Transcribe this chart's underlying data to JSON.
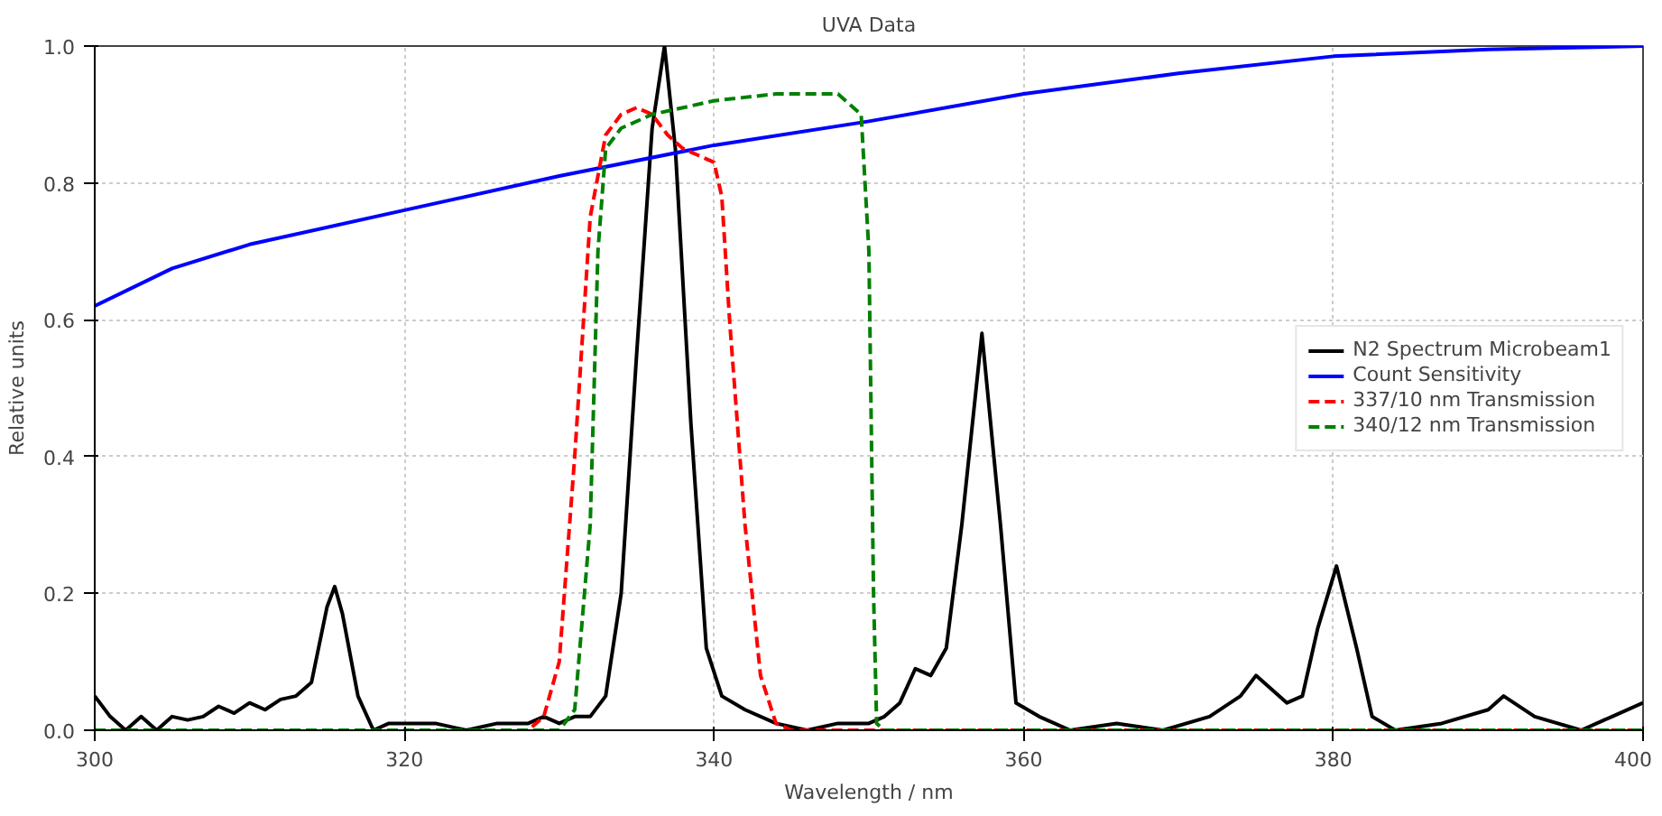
{
  "chart_data": {
    "type": "line",
    "title": "UVA Data",
    "xlabel": "Wavelength / nm",
    "ylabel": "Relative units",
    "xlim": [
      300,
      400
    ],
    "ylim": [
      0,
      1
    ],
    "xticks": [
      300,
      320,
      340,
      360,
      380,
      400
    ],
    "yticks": [
      {
        "value": 0,
        "label": "0.0"
      },
      {
        "value": 0.2,
        "label": "0.2"
      },
      {
        "value": 0.4,
        "label": "0.4"
      },
      {
        "value": 0.6,
        "label": "0.6"
      },
      {
        "value": 0.8,
        "label": "0.8"
      },
      {
        "value": 1,
        "label": "1.0"
      }
    ],
    "grid": true,
    "legend": "right",
    "series": [
      {
        "name": "N2 Spectrum Microbeam1",
        "color": "#000000",
        "line_style": "solid",
        "x": [
          300,
          301,
          302,
          303,
          304,
          305,
          306,
          307,
          308,
          309,
          310,
          311,
          312,
          313,
          314,
          315,
          315.5,
          316,
          317,
          318,
          319,
          320,
          322,
          324,
          326,
          328,
          329,
          330,
          331,
          332,
          333,
          334,
          335,
          336,
          336.8,
          337.5,
          338.5,
          339.5,
          340.5,
          342,
          344,
          346,
          348,
          350,
          351,
          352,
          353,
          354,
          355,
          356,
          357.3,
          358.5,
          359.5,
          361,
          363,
          366,
          369,
          372,
          374,
          375,
          376,
          377,
          378,
          379,
          380.2,
          381.5,
          382.5,
          384,
          387,
          390,
          391,
          393,
          396,
          398,
          400
        ],
        "values": [
          0.05,
          0.02,
          0.0,
          0.02,
          0.0,
          0.02,
          0.015,
          0.02,
          0.035,
          0.025,
          0.04,
          0.03,
          0.045,
          0.05,
          0.07,
          0.18,
          0.21,
          0.17,
          0.05,
          0.0,
          0.01,
          0.01,
          0.01,
          0.0,
          0.01,
          0.01,
          0.02,
          0.01,
          0.02,
          0.02,
          0.05,
          0.2,
          0.55,
          0.88,
          1.0,
          0.85,
          0.45,
          0.12,
          0.05,
          0.03,
          0.01,
          0.0,
          0.01,
          0.01,
          0.02,
          0.04,
          0.09,
          0.08,
          0.12,
          0.3,
          0.58,
          0.3,
          0.04,
          0.02,
          0.0,
          0.01,
          0.0,
          0.02,
          0.05,
          0.08,
          0.06,
          0.04,
          0.05,
          0.15,
          0.24,
          0.12,
          0.02,
          0.0,
          0.01,
          0.03,
          0.05,
          0.02,
          0.0,
          0.02,
          0.04
        ]
      },
      {
        "name": "Count Sensitivity",
        "color": "#0000ff",
        "line_style": "solid",
        "x": [
          300,
          305,
          310,
          320,
          330,
          340,
          350,
          360,
          370,
          380,
          390,
          400
        ],
        "values": [
          0.62,
          0.675,
          0.71,
          0.76,
          0.81,
          0.855,
          0.89,
          0.93,
          0.96,
          0.985,
          0.995,
          1.0
        ]
      },
      {
        "name": "337/10 nm Transmission",
        "color": "#ff0000",
        "line_style": "dashed",
        "x": [
          300,
          328,
          329,
          330,
          331,
          332,
          333,
          334,
          335,
          336,
          337,
          338,
          339,
          340,
          340.5,
          341,
          342,
          343,
          344,
          345,
          400
        ],
        "values": [
          0.0,
          0.0,
          0.02,
          0.1,
          0.4,
          0.75,
          0.87,
          0.9,
          0.91,
          0.9,
          0.87,
          0.85,
          0.84,
          0.83,
          0.78,
          0.6,
          0.3,
          0.08,
          0.01,
          0.0,
          0.0
        ]
      },
      {
        "name": "340/12 nm Transmission",
        "color": "#008000",
        "line_style": "dashed",
        "x": [
          300,
          330,
          331,
          332,
          332.5,
          333,
          334,
          336,
          340,
          344,
          348,
          349.5,
          350,
          350.3,
          350.5,
          351,
          400
        ],
        "values": [
          0.0,
          0.0,
          0.03,
          0.3,
          0.7,
          0.85,
          0.88,
          0.9,
          0.92,
          0.93,
          0.93,
          0.9,
          0.7,
          0.2,
          0.01,
          0.0,
          0.0
        ]
      }
    ]
  }
}
